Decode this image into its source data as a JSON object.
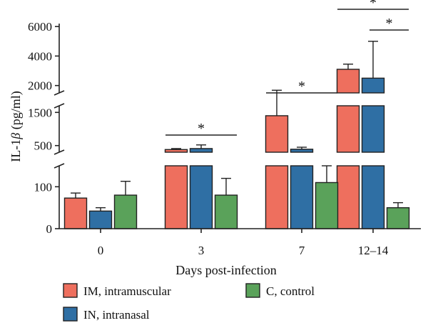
{
  "chart_data": {
    "type": "bar",
    "title": "",
    "xlabel": "Days post-infection",
    "ylabel": "IL-1β (pg/ml)",
    "ylabel_parts": {
      "pre": "IL-1",
      "greek": "β",
      "post": " (pg/ml)"
    },
    "categories": [
      "0",
      "3",
      "7",
      "12–14"
    ],
    "axis_breaks": true,
    "y_segments": [
      {
        "range": [
          0,
          150
        ],
        "ticks": [
          "0",
          "100"
        ]
      },
      {
        "range": [
          300,
          1700
        ],
        "ticks": [
          "500",
          "1500"
        ]
      },
      {
        "range": [
          1500,
          6200
        ],
        "ticks": [
          "2000",
          "4000",
          "6000"
        ]
      }
    ],
    "series": [
      {
        "name": "IM, intramuscular",
        "color": "#ee6f5e",
        "values": [
          73,
          380,
          1400,
          3100
        ],
        "errors": [
          12,
          30,
          280,
          350
        ]
      },
      {
        "name": "IN, intranasal",
        "color": "#2f6fa4",
        "values": [
          42,
          410,
          390,
          2500
        ],
        "errors": [
          8,
          110,
          60,
          2500
        ]
      },
      {
        "name": "C, control",
        "color": "#5aa25a",
        "values": [
          80,
          80,
          110,
          50
        ],
        "errors": [
          33,
          40,
          63,
          12
        ]
      }
    ],
    "significance": [
      {
        "category": "3",
        "label": "*",
        "from_series": 0,
        "to_series": 2
      },
      {
        "category": "7",
        "label": "*",
        "from_series": 0,
        "to_series": 2
      },
      {
        "category": "12–14",
        "label": "*",
        "from_series": 0,
        "to_series": 2
      },
      {
        "category": "12–14",
        "label": "*",
        "from_series": 1,
        "to_series": 2
      }
    ],
    "legend_position": "bottom-left",
    "grid": false
  }
}
